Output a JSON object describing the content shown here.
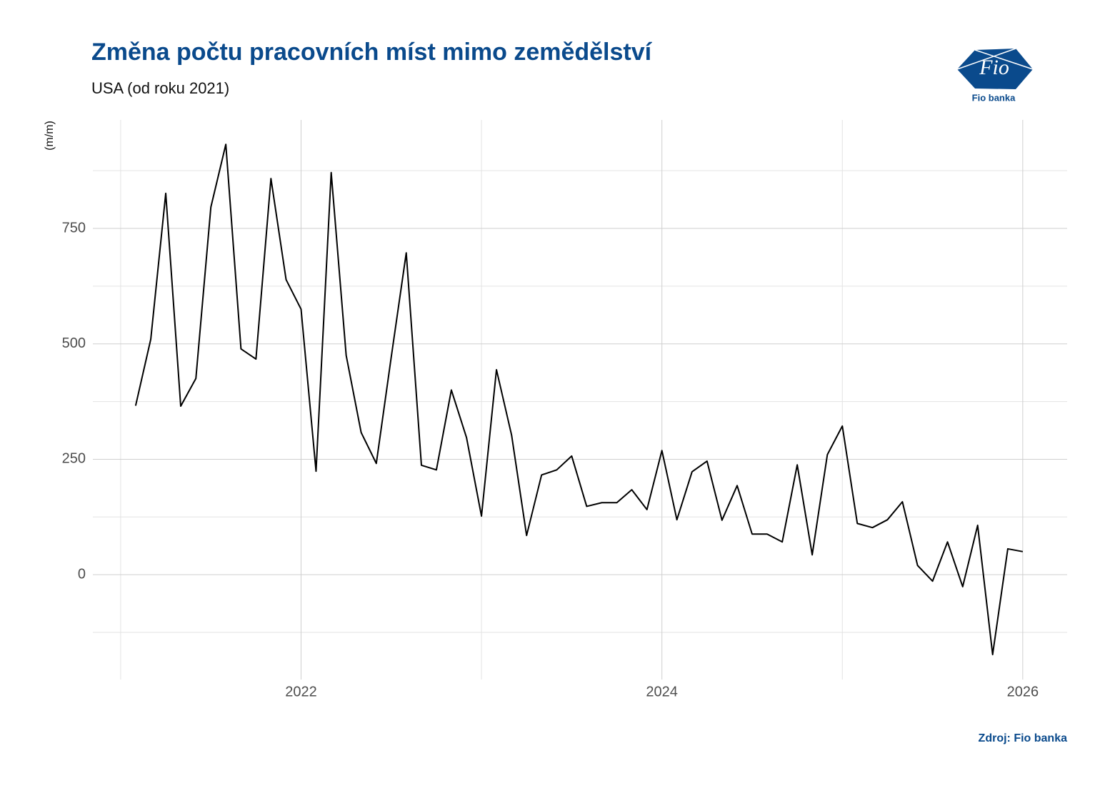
{
  "chart_data": {
    "type": "line",
    "title": "Změna počtu pracovních míst mimo zemědělství",
    "subtitle": "USA (od roku 2021)",
    "y_label": "(m/m)",
    "source": "Zdroj: Fio banka",
    "logo": {
      "mark": "Fio",
      "name": "Fio banka"
    },
    "color": "#000000",
    "grid": true,
    "x": [
      2021.083,
      2021.167,
      2021.25,
      2021.333,
      2021.417,
      2021.5,
      2021.583,
      2021.667,
      2021.75,
      2021.833,
      2021.917,
      2022.0,
      2022.083,
      2022.167,
      2022.25,
      2022.333,
      2022.417,
      2022.5,
      2022.583,
      2022.667,
      2022.75,
      2022.833,
      2022.917,
      2023.0,
      2023.083,
      2023.167,
      2023.25,
      2023.333,
      2023.417,
      2023.5,
      2023.583,
      2023.667,
      2023.75,
      2023.833,
      2023.917,
      2024.0,
      2024.083,
      2024.167,
      2024.25,
      2024.333,
      2024.417,
      2024.5,
      2024.583,
      2024.667,
      2024.75,
      2024.833,
      2024.917,
      2025.0,
      2025.083,
      2025.167,
      2025.25,
      2025.333,
      2025.417,
      2025.5,
      2025.583,
      2025.667,
      2025.75,
      2025.833,
      2025.917,
      2026.0
    ],
    "values": [
      366,
      510,
      826,
      365,
      425,
      796,
      932,
      489,
      467,
      858,
      639,
      575,
      224,
      871,
      475,
      308,
      241,
      472,
      697,
      237,
      227,
      400,
      297,
      127,
      444,
      302,
      85,
      216,
      227,
      257,
      148,
      156,
      156,
      184,
      141,
      269,
      119,
      223,
      246,
      118,
      193,
      88,
      88,
      71,
      238,
      43,
      260,
      322,
      111,
      102,
      119,
      158,
      20,
      -14,
      71,
      -26,
      107,
      -173,
      56,
      50
    ],
    "xlim": [
      2020.846,
      2026.246
    ],
    "ylim": [
      -227,
      985
    ],
    "xticks": [
      2022,
      2024,
      2026
    ],
    "yticks": [
      0,
      250,
      500,
      750
    ],
    "xminor": [
      2021,
      2023,
      2025
    ],
    "yminor": [
      -125,
      125,
      375,
      625,
      875
    ]
  }
}
